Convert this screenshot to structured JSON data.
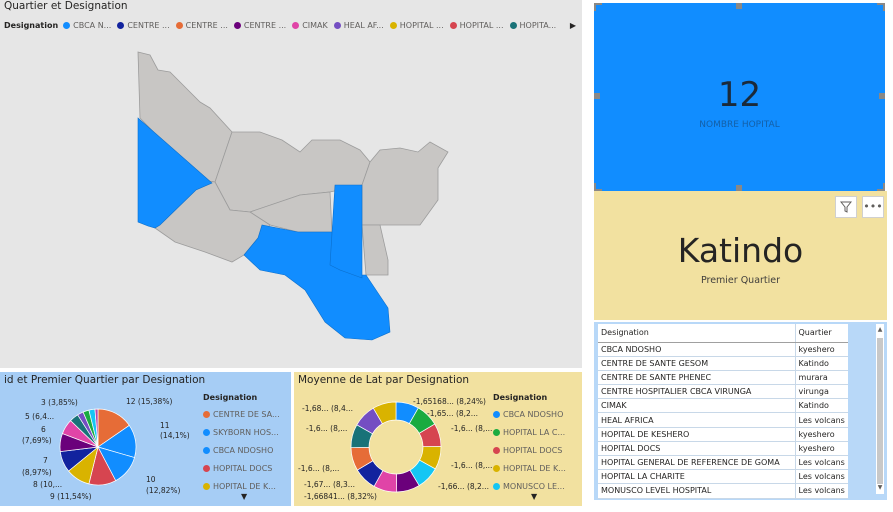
{
  "map": {
    "title": "Quartier et Designation",
    "legend_title": "Designation",
    "legend": [
      {
        "label": "CBCA N...",
        "color": "#118dff"
      },
      {
        "label": "CENTRE ...",
        "color": "#12239e"
      },
      {
        "label": "CENTRE ...",
        "color": "#e66c37"
      },
      {
        "label": "CENTRE ...",
        "color": "#6b007b"
      },
      {
        "label": "CIMAK",
        "color": "#e044a7"
      },
      {
        "label": "HEAL AF...",
        "color": "#744ec2"
      },
      {
        "label": "HOPITAL ...",
        "color": "#d9b300"
      },
      {
        "label": "HOPITAL ...",
        "color": "#d64550"
      },
      {
        "label": "HOPITA...",
        "color": "#197278"
      }
    ]
  },
  "kpi": {
    "value": "12",
    "label": "NOMBRE HOPITAL"
  },
  "quartier_card": {
    "value": "Katindo",
    "label": "Premier Quartier"
  },
  "table": {
    "headers": [
      "Designation",
      "Quartier"
    ],
    "rows": [
      [
        "CBCA NDOSHO",
        "kyeshero"
      ],
      [
        "CENTRE DE SANTE GESOM",
        "Katindo"
      ],
      [
        "CENTRE DE SANTE PHENEC",
        "murara"
      ],
      [
        "CENTRE HOSPITALIER CBCA VIRUNGA",
        "virunga"
      ],
      [
        "CIMAK",
        "Katindo"
      ],
      [
        "HEAL AFRICA",
        "Les volcans"
      ],
      [
        "HOPITAL DE KESHERO",
        "kyeshero"
      ],
      [
        "HOPITAL DOCS",
        "kyeshero"
      ],
      [
        "HOPITAL GENERAL DE REFERENCE DE GOMA",
        "Les volcans"
      ],
      [
        "HOPITAL LA CHARITE",
        "Les volcans"
      ],
      [
        "MONUSCO LEVEL HOSPITAL",
        "Les volcans"
      ]
    ]
  },
  "pie": {
    "title": "id et Premier Quartier par Designation",
    "legend_title": "Designation",
    "legend": [
      {
        "label": "CENTRE DE SA...",
        "color": "#e66c37"
      },
      {
        "label": "SKYBORN HOS...",
        "color": "#118dff"
      },
      {
        "label": "CBCA NDOSHO",
        "color": "#118dff"
      },
      {
        "label": "HOPITAL DOCS",
        "color": "#d64550"
      },
      {
        "label": "HOPITAL DE K...",
        "color": "#d9b300"
      }
    ],
    "slice_labels": [
      "12 (15,38%)",
      "11",
      "(14,1%)",
      "10",
      "(12,82%)",
      "9 (11,54%)",
      "8 (10,...",
      "7",
      "(8,97%)",
      "6",
      "(7,69%)",
      "5 (6,4...",
      "3 (3,85%)"
    ]
  },
  "donut": {
    "title": "Moyenne de Lat par Designation",
    "legend_title": "Designation",
    "legend": [
      {
        "label": "CBCA NDOSHO",
        "color": "#118dff"
      },
      {
        "label": "HOPITAL LA C...",
        "color": "#1aab40"
      },
      {
        "label": "HOPITAL DOCS",
        "color": "#d64550"
      },
      {
        "label": "HOPITAL DE K...",
        "color": "#d9b300"
      },
      {
        "label": "MONUSCO LE...",
        "color": "#15c6f4"
      }
    ],
    "slice_labels": [
      "-1,65168... (8,24%)",
      "-1,65... (8,2...",
      "-1,6... (8,...",
      "-1,6... (8,...",
      "-1,66... (8,2...",
      "-1,66841... (8,32%)",
      "-1,67... (8,3...",
      "-1,6... (8,...",
      "-1,6... (8,...",
      "-1,68... (8,4..."
    ]
  },
  "chart_data": [
    {
      "type": "pie",
      "title": "id et Premier Quartier par Designation",
      "values": [
        12,
        11,
        10,
        9,
        8,
        7,
        6,
        5,
        3,
        2,
        2,
        2,
        1
      ],
      "colors": [
        "#e66c37",
        "#118dff",
        "#118dff",
        "#d64550",
        "#d9b300",
        "#12239e",
        "#6b007b",
        "#e044a7",
        "#197278",
        "#744ec2",
        "#1aab40",
        "#15c6f4",
        "#b845a7"
      ]
    },
    {
      "type": "pie",
      "title": "Moyenne de Lat par Designation",
      "values": [
        1.65168,
        1.65,
        1.66,
        1.66,
        1.66,
        1.66841,
        1.67,
        1.67,
        1.67,
        1.68,
        1.68,
        1.68
      ],
      "colors": [
        "#118dff",
        "#1aab40",
        "#d64550",
        "#d9b300",
        "#15c6f4",
        "#6b007b",
        "#e044a7",
        "#12239e",
        "#e66c37",
        "#197278",
        "#744ec2",
        "#d9b300"
      ]
    }
  ]
}
